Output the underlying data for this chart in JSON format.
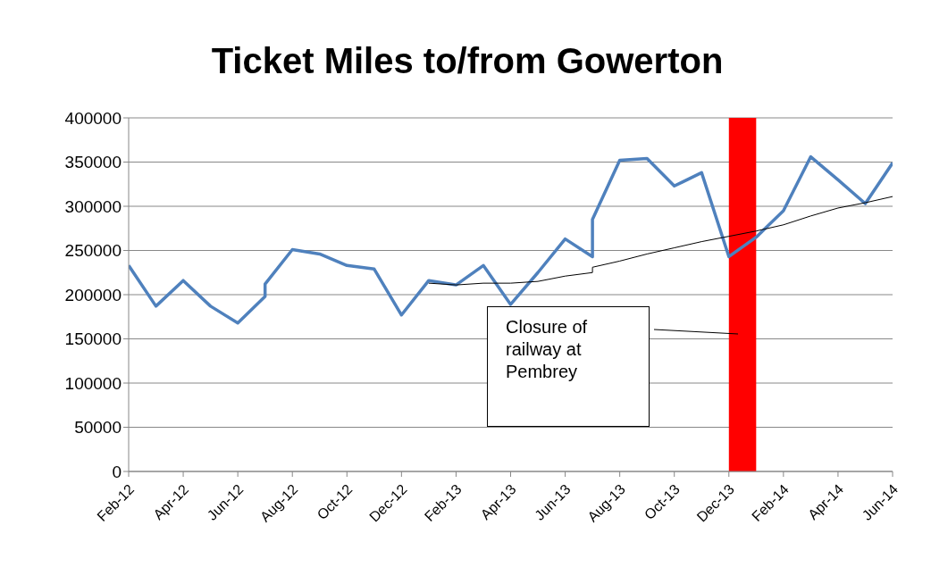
{
  "chart_data": {
    "type": "line",
    "title": "Ticket Miles to/from Gowerton",
    "xlim": [
      "2012-02",
      "2014-06"
    ],
    "xticks": [
      {
        "value": "2012-02",
        "label": "Feb-12"
      },
      {
        "value": "2012-04",
        "label": "Apr-12"
      },
      {
        "value": "2012-06",
        "label": "Jun-12"
      },
      {
        "value": "2012-08",
        "label": "Aug-12"
      },
      {
        "value": "2012-10",
        "label": "Oct-12"
      },
      {
        "value": "2012-12",
        "label": "Dec-12"
      },
      {
        "value": "2013-02",
        "label": "Feb-13"
      },
      {
        "value": "2013-04",
        "label": "Apr-13"
      },
      {
        "value": "2013-06",
        "label": "Jun-13"
      },
      {
        "value": "2013-08",
        "label": "Aug-13"
      },
      {
        "value": "2013-10",
        "label": "Oct-13"
      },
      {
        "value": "2013-12",
        "label": "Dec-13"
      },
      {
        "value": "2014-02",
        "label": "Feb-14"
      },
      {
        "value": "2014-04",
        "label": "Apr-14"
      },
      {
        "value": "2014-06",
        "label": "Jun-14"
      }
    ],
    "ylim": [
      0,
      400000
    ],
    "yticks": [
      0,
      50000,
      100000,
      150000,
      200000,
      250000,
      300000,
      350000,
      400000
    ],
    "grid": "y",
    "legend": false,
    "marker": "none",
    "line_style": "solid",
    "series": [
      {
        "color": "#4f81bd",
        "x": [
          "2012-02",
          "2012-03",
          "2012-04",
          "2012-05",
          "2012-06",
          "2012-07",
          "2012-07",
          "2012-08",
          "2012-09",
          "2012-10",
          "2012-11",
          "2012-12",
          "2013-01",
          "2013-02",
          "2013-03",
          "2013-04",
          "2013-05",
          "2013-06",
          "2013-07",
          "2013-07",
          "2013-08",
          "2013-09",
          "2013-10",
          "2013-11",
          "2013-12",
          "2014-01",
          "2014-02",
          "2014-03",
          "2014-04",
          "2014-05",
          "2014-06"
        ],
        "values": [
          233000,
          187000,
          216000,
          187000,
          168000,
          198000,
          212000,
          251000,
          246000,
          233000,
          229000,
          177000,
          216000,
          211000,
          233000,
          189000,
          225000,
          263000,
          243000,
          285000,
          352000,
          354000,
          323000,
          338000,
          243000,
          265000,
          295000,
          356000,
          330000,
          303000,
          349000
        ]
      },
      {
        "color": "#000000",
        "x": [
          "2013-01",
          "2013-02",
          "2013-03",
          "2013-04",
          "2013-05",
          "2013-06",
          "2013-07",
          "2013-07",
          "2013-08",
          "2013-09",
          "2013-10",
          "2013-11",
          "2013-12",
          "2014-01",
          "2014-02",
          "2014-03",
          "2014-04",
          "2014-05",
          "2014-06"
        ],
        "values": [
          213000,
          211000,
          213000,
          213000,
          215000,
          221000,
          225000,
          231000,
          238000,
          246000,
          253000,
          260000,
          266000,
          272000,
          279000,
          289000,
          298000,
          304000,
          311000
        ]
      }
    ],
    "bands": [
      {
        "axis": "x",
        "from": "2013-12",
        "to": "2014-01",
        "color": "#ff0000"
      }
    ],
    "annotations": [
      "Closure of railway at Pembrey"
    ]
  }
}
